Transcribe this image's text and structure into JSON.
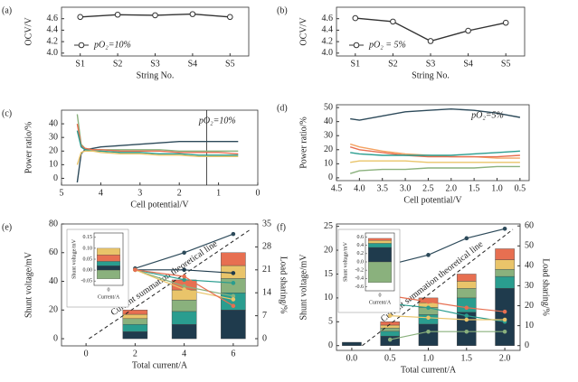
{
  "chart_data": [
    {
      "type": "line",
      "panel_label": "(a)",
      "categories": [
        "S1",
        "S2",
        "S3",
        "S4",
        "S5"
      ],
      "x_label": "String No.",
      "y_label": "OCV/V",
      "ylim": [
        3.95,
        4.8
      ],
      "yticks": [
        {
          "value": 4,
          "label": "4.0"
        },
        4.2,
        4.4,
        4.6
      ],
      "legend": "lower left",
      "series": [
        {
          "name": "pO₂=10%",
          "color": "#333333",
          "values": [
            4.63,
            4.67,
            4.66,
            4.68,
            4.63
          ]
        }
      ]
    },
    {
      "type": "line",
      "panel_label": "(b)",
      "categories": [
        "S1",
        "S2",
        "S3",
        "S4",
        "S5"
      ],
      "x_label": "String No.",
      "y_label": "OCV/V",
      "ylim": [
        3.95,
        4.8
      ],
      "yticks": [
        {
          "value": 4,
          "label": "4.0"
        },
        4.2,
        4.4,
        4.6
      ],
      "legend": "lower left",
      "series": [
        {
          "name": "pO₂ = 5%",
          "color": "#333333",
          "values": [
            4.61,
            4.55,
            4.21,
            4.39,
            4.53
          ]
        }
      ]
    },
    {
      "type": "line",
      "panel_label": "(c)",
      "x_label": "Cell potential/V",
      "y_label": "Power ratio/%",
      "annotation": "pO₂=10%",
      "xlim": [
        5,
        0
      ],
      "xticks": [
        5,
        4,
        3,
        2,
        1,
        0
      ],
      "ylim": [
        -5,
        50
      ],
      "yticks": [
        0,
        10,
        20,
        30,
        40
      ],
      "vline": 1.3,
      "x": [
        4.6,
        4.5,
        4.4,
        4.2,
        4.0,
        3.5,
        3.0,
        2.5,
        2.0,
        1.5,
        1.0,
        0.5
      ],
      "series": [
        {
          "color": "#2d4a5a",
          "values": [
            -3,
            18,
            21,
            22,
            23,
            24,
            25,
            26,
            27,
            27,
            27,
            27
          ]
        },
        {
          "color": "#8ab17d",
          "values": [
            47,
            25,
            22,
            21,
            21,
            21,
            21,
            21,
            20,
            20,
            20,
            20
          ]
        },
        {
          "color": "#e76f51",
          "values": [
            40,
            24,
            22,
            21,
            21,
            20,
            20,
            20,
            19,
            19,
            19,
            18
          ]
        },
        {
          "color": "#2a9d8f",
          "values": [
            35,
            23,
            21,
            20,
            20,
            19,
            19,
            18,
            18,
            17,
            17,
            17
          ]
        },
        {
          "color": "#e9c46a",
          "values": [
            10,
            19,
            20,
            20,
            19,
            18,
            18,
            17,
            17,
            16,
            16,
            16
          ]
        }
      ]
    },
    {
      "type": "line",
      "panel_label": "(d)",
      "x_label": "Cell potential/V",
      "y_label": "Power ratio/%",
      "annotation": "pO₂=5%",
      "xlim": [
        4.5,
        0.3
      ],
      "xticks": [
        4.5,
        {
          "value": 4,
          "label": "4.0"
        },
        3.5,
        {
          "value": 3,
          "label": "3.0"
        },
        2.5,
        {
          "value": 2,
          "label": "2.0"
        },
        1.5,
        {
          "value": 1,
          "label": "1.0"
        },
        0.5
      ],
      "ylim": [
        -2,
        52
      ],
      "yticks": [
        0,
        10,
        20,
        30,
        40,
        50
      ],
      "x": [
        4.2,
        4.0,
        3.5,
        3.0,
        2.5,
        2.0,
        1.5,
        1.0,
        0.5
      ],
      "series": [
        {
          "color": "#2d4a5a",
          "values": [
            42,
            41,
            44,
            47,
            48,
            49,
            48,
            46,
            43
          ]
        },
        {
          "color": "#f4a261",
          "values": [
            24,
            22,
            19,
            17,
            16,
            15,
            15,
            14,
            14
          ]
        },
        {
          "color": "#e76f51",
          "values": [
            22,
            20,
            18,
            16,
            15,
            15,
            15,
            15,
            16
          ]
        },
        {
          "color": "#2a9d8f",
          "values": [
            18,
            17,
            16,
            16,
            16,
            16,
            17,
            18,
            19
          ]
        },
        {
          "color": "#e9c46a",
          "values": [
            11,
            12,
            12,
            12,
            11,
            11,
            11,
            11,
            11
          ]
        },
        {
          "color": "#8ab17d",
          "values": [
            3,
            5,
            6,
            6,
            7,
            7,
            7,
            8,
            8
          ]
        }
      ]
    },
    {
      "type": "bar_line",
      "panel_label": "(e)",
      "x_label": "Total current/A",
      "y_label": "Shunt voltage/mV",
      "y2_label": "Load sharing/%",
      "annotation": "Current summation theoretical line",
      "xlim": [
        -1,
        7
      ],
      "xticks": [
        0,
        2,
        4,
        6
      ],
      "ylim": [
        -5,
        80
      ],
      "yticks": [
        0,
        20,
        40,
        60,
        80
      ],
      "y2lim": [
        -2.2,
        35
      ],
      "y2ticks": [
        0,
        7,
        14,
        21,
        28,
        35
      ],
      "bar_x": [
        2,
        4,
        6
      ],
      "stacks": [
        {
          "color": "#1f3b4d",
          "values": [
            5,
            10,
            20
          ]
        },
        {
          "color": "#2a9d8f",
          "values": [
            5,
            9,
            12
          ]
        },
        {
          "color": "#8ab17d",
          "values": [
            4,
            8,
            10
          ]
        },
        {
          "color": "#e9c46a",
          "values": [
            3,
            7,
            9
          ]
        },
        {
          "color": "#e76f51",
          "values": [
            3,
            7,
            9
          ]
        }
      ],
      "series": [
        {
          "color": "#2d4a5a",
          "x": [
            2,
            4,
            6
          ],
          "values": [
            49,
            60,
            73
          ]
        },
        {
          "color": "#1f3b4d",
          "axis": "y2",
          "x": [
            2,
            4,
            6
          ],
          "values": [
            21,
            21,
            20
          ]
        },
        {
          "color": "#2a9d8f",
          "axis": "y2",
          "x": [
            2,
            4,
            6
          ],
          "values": [
            21,
            18,
            17
          ]
        },
        {
          "color": "#8ab17d",
          "axis": "y2",
          "x": [
            2,
            4,
            6
          ],
          "values": [
            21,
            16,
            13
          ]
        },
        {
          "color": "#e9c46a",
          "axis": "y2",
          "x": [
            2,
            4,
            6
          ],
          "values": [
            21,
            15,
            12
          ]
        },
        {
          "color": "#e76f51",
          "axis": "y2",
          "x": [
            2,
            4,
            6
          ],
          "values": [
            21,
            19,
            10
          ]
        }
      ],
      "inset": {
        "y_label": "Shunt voltage/mV",
        "x_label": "Current/A",
        "xticks": [
          0
        ],
        "ylim": [
          -0.07,
          0.17
        ],
        "yticks": [
          0.15,
          {
            "value": 0.1,
            "label": "0.10"
          },
          0.05,
          {
            "value": 0,
            "label": "0.00"
          },
          -0.05
        ],
        "segments": [
          {
            "color": "#1f3b4d",
            "value": 0.02
          },
          {
            "color": "#2a9d8f",
            "value": 0.02
          },
          {
            "color": "#e76f51",
            "value": 0.03
          },
          {
            "color": "#e9c46a",
            "value": 0.03
          },
          {
            "color": "#8ab17d",
            "value": -0.04
          }
        ]
      }
    },
    {
      "type": "bar_line",
      "panel_label": "(f)",
      "x_label": "Total current/A",
      "y_label": "Shunt voltage/mV",
      "y2_label": "Load sharing/%",
      "annotation": "Current summation theoretical line",
      "xlim": [
        -0.2,
        2.2
      ],
      "xticks": [
        {
          "value": 0,
          "label": "0.0"
        },
        0.5,
        {
          "value": 1,
          "label": "1.0"
        },
        1.5,
        {
          "value": 2,
          "label": "2.0"
        }
      ],
      "ylim": [
        -1,
        25.5
      ],
      "yticks": [
        0,
        5,
        10,
        15,
        20,
        25
      ],
      "y2lim": [
        -2.4,
        61
      ],
      "y2ticks": [
        0,
        10,
        20,
        30,
        40,
        50,
        60
      ],
      "bar_x": [
        0,
        0.5,
        1,
        1.5,
        2
      ],
      "stacks": [
        {
          "color": "#1f3b4d",
          "values": [
            0.7,
            2,
            4.5,
            7,
            12
          ]
        },
        {
          "color": "#2a9d8f",
          "values": [
            0,
            1,
            2,
            3,
            2.5
          ]
        },
        {
          "color": "#8ab17d",
          "values": [
            0,
            0.7,
            1.5,
            2,
            1.5
          ]
        },
        {
          "color": "#e9c46a",
          "values": [
            0,
            0.6,
            1,
            1.5,
            2
          ]
        },
        {
          "color": "#e76f51",
          "values": [
            0,
            0.7,
            1,
            1.5,
            2.3
          ]
        }
      ],
      "series": [
        {
          "color": "#2d4a5a",
          "x": [
            0.5,
            1,
            1.5,
            2
          ],
          "values": [
            17,
            19,
            22.5,
            24.5
          ]
        },
        {
          "color": "#e76f51",
          "axis": "y2",
          "x": [
            0.5,
            1,
            1.5,
            2
          ],
          "values": [
            25,
            22,
            19,
            17
          ]
        },
        {
          "color": "#2a9d8f",
          "axis": "y2",
          "x": [
            0.5,
            1,
            1.5,
            2
          ],
          "values": [
            21,
            19,
            15,
            12
          ]
        },
        {
          "color": "#e9c46a",
          "axis": "y2",
          "x": [
            0.5,
            1,
            1.5,
            2
          ],
          "values": [
            15,
            14,
            13,
            13
          ]
        },
        {
          "color": "#8ab17d",
          "axis": "y2",
          "x": [
            0.5,
            1,
            1.5,
            2
          ],
          "values": [
            3,
            7,
            7,
            7
          ]
        }
      ],
      "inset": {
        "y_label": "Shunt voltage/mV",
        "x_label": "Current/A",
        "xticks": [
          0
        ],
        "ylim": [
          -0.7,
          0.7
        ],
        "yticks": [
          0.6,
          0.4,
          0.2,
          {
            "value": 0,
            "label": "0.0"
          },
          -0.2,
          -0.4,
          -0.6
        ],
        "segments": [
          {
            "color": "#1f3b4d",
            "value": 0.35
          },
          {
            "color": "#2a9d8f",
            "value": 0.1
          },
          {
            "color": "#e9c46a",
            "value": 0.07
          },
          {
            "color": "#e76f51",
            "value": 0.05
          },
          {
            "color": "#8ab17d",
            "value": -0.5
          }
        ]
      }
    }
  ]
}
